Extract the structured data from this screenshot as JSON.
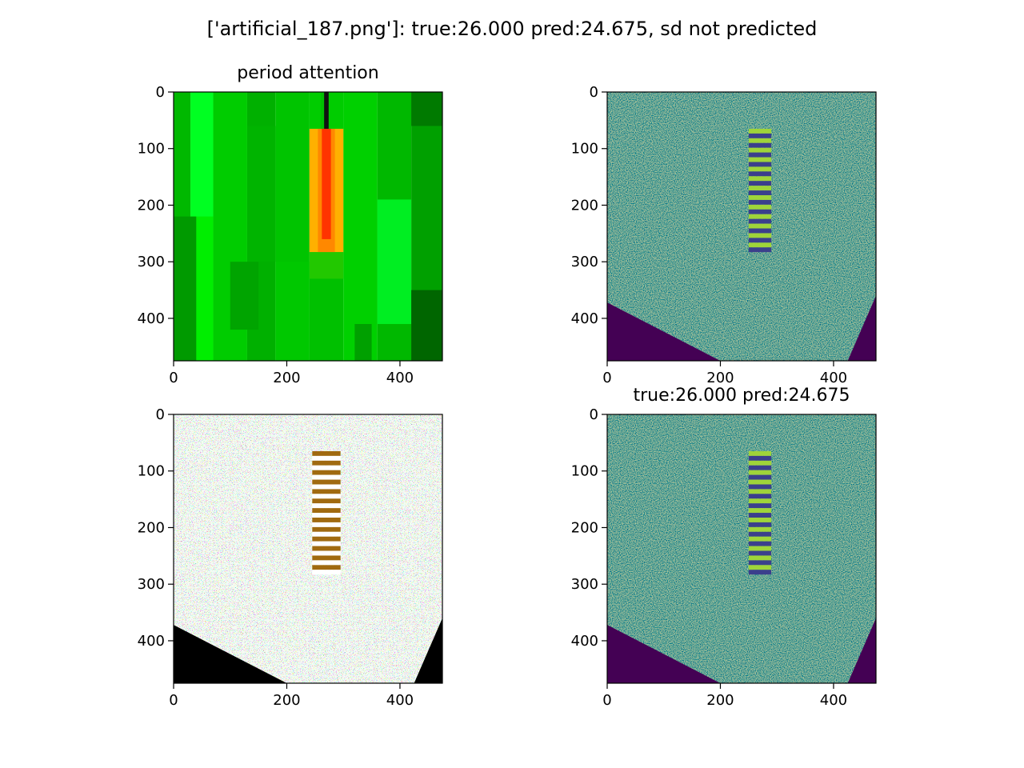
{
  "figure": {
    "suptitle": "['artificial_187.png']: true:26.000 pred:24.675, sd not predicted"
  },
  "chart_data": [
    {
      "type": "heatmap",
      "title": "period attention",
      "colormap": "green-yellow-red attention",
      "xlim": [
        0,
        475
      ],
      "ylim": [
        475,
        0
      ],
      "xticks": [
        0,
        200,
        400
      ],
      "yticks": [
        0,
        100,
        200,
        300,
        400
      ],
      "description_values": {
        "high_attention_column_x": [
          240,
          300
        ],
        "high_attention_rows_y": [
          65,
          283
        ]
      }
    },
    {
      "type": "heatmap",
      "title": "",
      "colormap": "viridis",
      "xlim": [
        0,
        475
      ],
      "ylim": [
        475,
        0
      ],
      "xticks": [
        0,
        200,
        400
      ],
      "yticks": [
        0,
        100,
        200,
        300,
        400
      ],
      "stripes": {
        "x": [
          250,
          290
        ],
        "y": [
          65,
          283
        ],
        "count": 13
      }
    },
    {
      "type": "heatmap",
      "title": "",
      "colormap": "rgb overlay",
      "xlim": [
        0,
        475
      ],
      "ylim": [
        475,
        0
      ],
      "xticks": [
        0,
        200,
        400
      ],
      "yticks": [
        0,
        100,
        200,
        300,
        400
      ],
      "stripes": {
        "x": [
          245,
          295
        ],
        "y": [
          65,
          283
        ],
        "count": 13
      }
    },
    {
      "type": "heatmap",
      "title": "true:26.000 pred:24.675",
      "colormap": "viridis",
      "xlim": [
        0,
        475
      ],
      "ylim": [
        475,
        0
      ],
      "xticks": [
        0,
        200,
        400
      ],
      "yticks": [
        0,
        100,
        200,
        300,
        400
      ],
      "stripes": {
        "x": [
          250,
          290
        ],
        "y": [
          65,
          283
        ],
        "count": 13
      }
    }
  ]
}
